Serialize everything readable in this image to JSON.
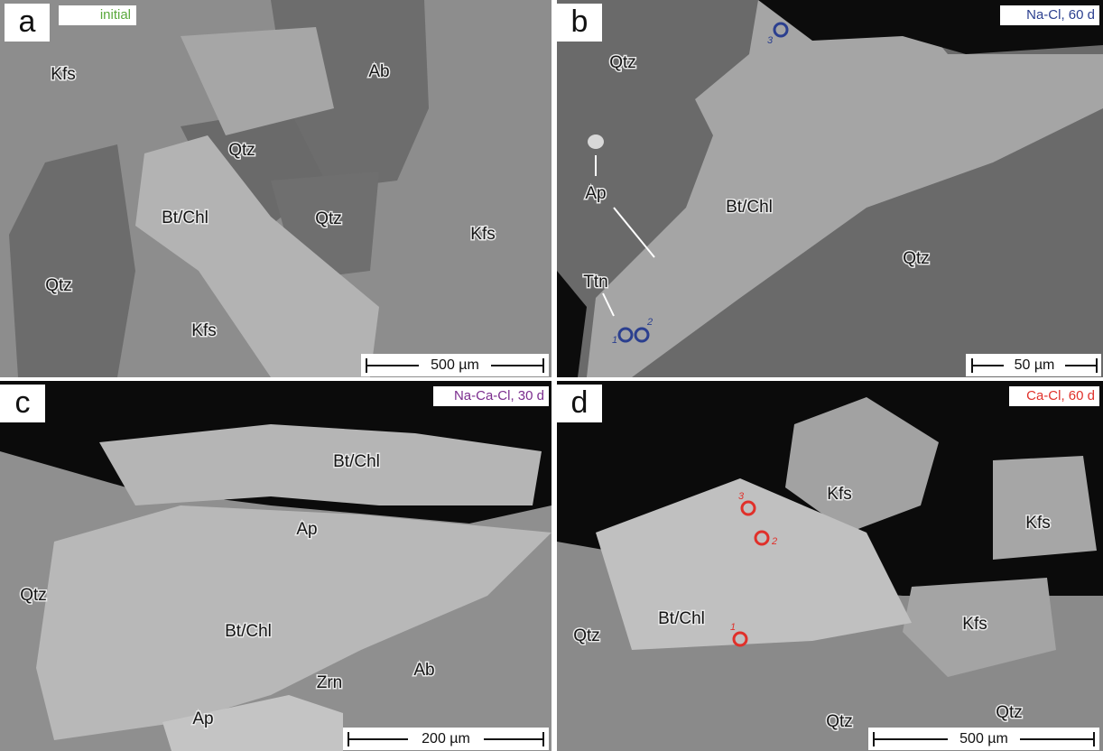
{
  "panels": [
    {
      "letter": "a",
      "condition": "initial",
      "scale_bar": "500 µm",
      "labels": [
        "Kfs",
        "Ab",
        "Qtz",
        "Bt/Chl",
        "Qtz",
        "Kfs",
        "Qtz",
        "Kfs"
      ]
    },
    {
      "letter": "b",
      "condition": "Na-Cl, 60 d",
      "scale_bar": "50 µm",
      "labels": [
        "Qtz",
        "Ap",
        "Bt/Chl",
        "Qtz",
        "Ttn"
      ],
      "points": [
        "1",
        "2",
        "3"
      ]
    },
    {
      "letter": "c",
      "condition": "Na-Ca-Cl, 30 d",
      "scale_bar": "200 µm",
      "labels": [
        "Bt/Chl",
        "Ap",
        "Qtz",
        "Bt/Chl",
        "Ab",
        "Zrn",
        "Ap"
      ]
    },
    {
      "letter": "d",
      "condition": "Ca-Cl, 60 d",
      "scale_bar": "500 µm",
      "labels": [
        "Kfs",
        "Kfs",
        "Bt/Chl",
        "Kfs",
        "Qtz",
        "Qtz",
        "Qtz"
      ],
      "points": [
        "1",
        "2",
        "3"
      ]
    }
  ]
}
